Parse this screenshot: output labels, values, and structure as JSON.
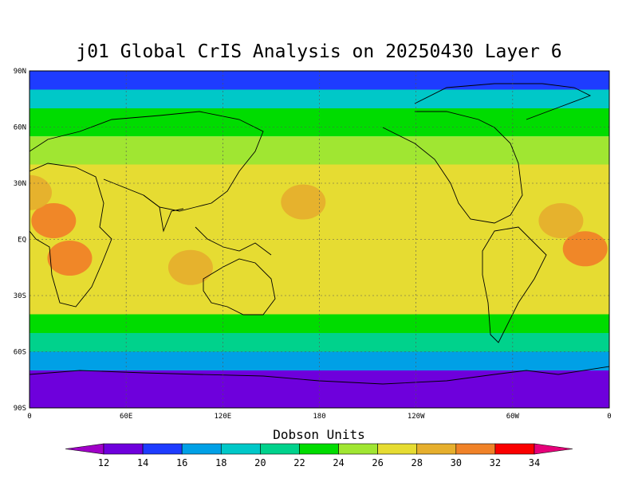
{
  "title": "j01 Global CrIS Analysis on 20250430 Layer 6",
  "axes": {
    "lat_ticks": [
      "90N",
      "60N",
      "30N",
      "EQ",
      "30S",
      "60S",
      "90S"
    ],
    "lon_ticks": [
      "0",
      "60E",
      "120E",
      "180",
      "120W",
      "60W",
      "0"
    ]
  },
  "colorbar": {
    "title": "Dobson Units",
    "levels": [
      12,
      14,
      16,
      18,
      20,
      22,
      24,
      26,
      28,
      30,
      32,
      34
    ],
    "colors": [
      "#a000c8",
      "#6e00dc",
      "#1e3cff",
      "#00a0e6",
      "#00c8c8",
      "#00d28c",
      "#00dc00",
      "#a0e632",
      "#e6dc32",
      "#e6af2d",
      "#f08228",
      "#fa0000",
      "#e6007a"
    ]
  },
  "chart_data": {
    "type": "heatmap",
    "title": "j01 Global CrIS Analysis on 20250430 Layer 6",
    "unit": "Dobson Units",
    "xlim": [
      0,
      360
    ],
    "ylim": [
      -90,
      90
    ],
    "grid": true,
    "colorbar_levels": [
      12,
      14,
      16,
      18,
      20,
      22,
      24,
      26,
      28,
      30,
      32,
      34
    ],
    "zonal_bands": [
      {
        "lat": [
          80,
          90
        ],
        "value": 15
      },
      {
        "lat": [
          70,
          80
        ],
        "value": 19
      },
      {
        "lat": [
          55,
          70
        ],
        "value": 23
      },
      {
        "lat": [
          40,
          55
        ],
        "value": 25
      },
      {
        "lat": [
          20,
          40
        ],
        "value": 26
      },
      {
        "lat": [
          -20,
          20
        ],
        "value": 27
      },
      {
        "lat": [
          -40,
          -20
        ],
        "value": 26
      },
      {
        "lat": [
          -50,
          -40
        ],
        "value": 23
      },
      {
        "lat": [
          -60,
          -50
        ],
        "value": 20
      },
      {
        "lat": [
          -70,
          -60
        ],
        "value": 16
      },
      {
        "lat": [
          -90,
          -70
        ],
        "value": 12
      }
    ],
    "blobs": [
      {
        "lon": 15,
        "lat": 10,
        "value": 30
      },
      {
        "lon": 25,
        "lat": -10,
        "value": 31
      },
      {
        "lon": 345,
        "lat": -5,
        "value": 30
      },
      {
        "lon": 330,
        "lat": 10,
        "value": 29
      },
      {
        "lon": 170,
        "lat": 20,
        "value": 29
      },
      {
        "lon": 100,
        "lat": -15,
        "value": 28
      },
      {
        "lon": 0,
        "lat": 25,
        "value": 29
      }
    ]
  }
}
